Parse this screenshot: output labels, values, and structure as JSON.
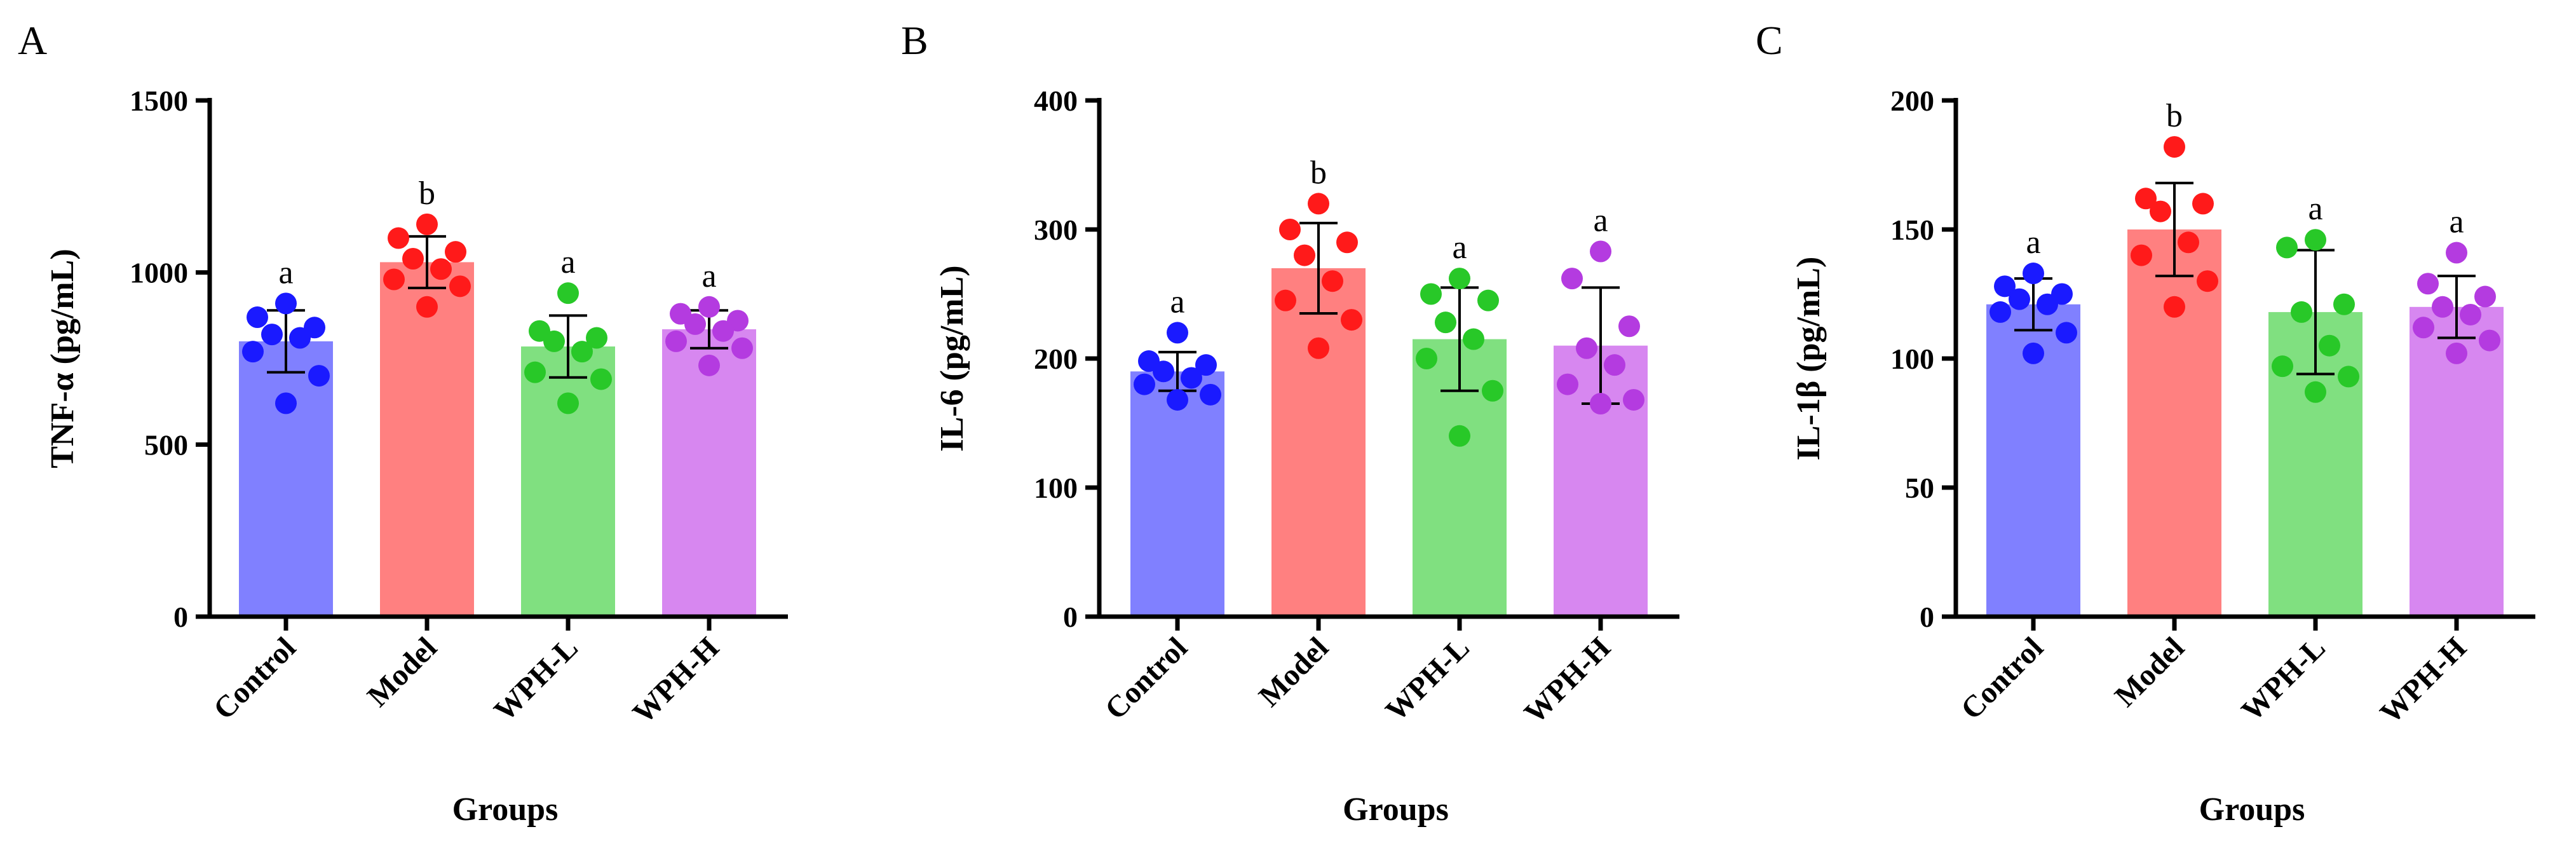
{
  "chart_data": [
    {
      "panel_label": "A",
      "type": "bar",
      "title": "",
      "xlabel": "Groups",
      "ylabel": "TNF-α (pg/mL)",
      "ylim": [
        0,
        1500
      ],
      "yticks": [
        "0",
        "500",
        "1000",
        "1500"
      ],
      "ytick_values": [
        0,
        500,
        1000,
        1500
      ],
      "categories": [
        "Control",
        "Model",
        "WPH-L",
        "WPH-H"
      ],
      "values": [
        800,
        1030,
        785,
        835
      ],
      "error": [
        90,
        75,
        90,
        55
      ],
      "significance": [
        "a",
        "b",
        "a",
        "a"
      ],
      "points": [
        [
          910,
          870,
          840,
          820,
          810,
          770,
          700,
          620
        ],
        [
          1140,
          1100,
          1060,
          1040,
          1010,
          980,
          960,
          900
        ],
        [
          940,
          830,
          810,
          800,
          770,
          710,
          690,
          620
        ],
        [
          900,
          880,
          860,
          850,
          830,
          800,
          780,
          730
        ]
      ],
      "bar_colors": [
        "#8080ff",
        "#ff8080",
        "#80e080",
        "#d787f0"
      ],
      "point_colors": [
        "#1a1aff",
        "#ff1a1a",
        "#28c828",
        "#b43be0"
      ]
    },
    {
      "panel_label": "B",
      "type": "bar",
      "title": "",
      "xlabel": "Groups",
      "ylabel": "IL-6 (pg/mL)",
      "ylim": [
        0,
        400
      ],
      "yticks": [
        "0",
        "100",
        "200",
        "300",
        "400"
      ],
      "ytick_values": [
        0,
        100,
        200,
        300,
        400
      ],
      "categories": [
        "Control",
        "Model",
        "WPH-L",
        "WPH-H"
      ],
      "values": [
        190,
        270,
        215,
        210
      ],
      "error": [
        15,
        35,
        40,
        45
      ],
      "significance": [
        "a",
        "b",
        "a",
        "a"
      ],
      "points": [
        [
          220,
          198,
          195,
          190,
          185,
          180,
          172,
          168
        ],
        [
          320,
          300,
          290,
          280,
          260,
          245,
          230,
          208
        ],
        [
          262,
          250,
          245,
          228,
          215,
          200,
          175,
          140
        ],
        [
          283,
          262,
          225,
          208,
          195,
          180,
          168,
          165
        ]
      ],
      "bar_colors": [
        "#8080ff",
        "#ff8080",
        "#80e080",
        "#d787f0"
      ],
      "point_colors": [
        "#1a1aff",
        "#ff1a1a",
        "#28c828",
        "#b43be0"
      ]
    },
    {
      "panel_label": "C",
      "type": "bar",
      "title": "",
      "xlabel": "Groups",
      "ylabel": "IL-1β (pg/mL)",
      "ylim": [
        0,
        200
      ],
      "yticks": [
        "0",
        "50",
        "100",
        "150",
        "200"
      ],
      "ytick_values": [
        0,
        50,
        100,
        150,
        200
      ],
      "categories": [
        "Control",
        "Model",
        "WPH-L",
        "WPH-H"
      ],
      "values": [
        121,
        150,
        118,
        120
      ],
      "error": [
        10,
        18,
        24,
        12
      ],
      "significance": [
        "a",
        "b",
        "a",
        "a"
      ],
      "points": [
        [
          133,
          128,
          125,
          123,
          121,
          118,
          110,
          102
        ],
        [
          182,
          162,
          160,
          157,
          145,
          140,
          130,
          120
        ],
        [
          146,
          143,
          121,
          118,
          105,
          97,
          93,
          87
        ],
        [
          141,
          129,
          124,
          120,
          117,
          112,
          107,
          102
        ]
      ],
      "bar_colors": [
        "#8080ff",
        "#ff8080",
        "#80e080",
        "#d787f0"
      ],
      "point_colors": [
        "#1a1aff",
        "#ff1a1a",
        "#28c828",
        "#b43be0"
      ]
    }
  ]
}
